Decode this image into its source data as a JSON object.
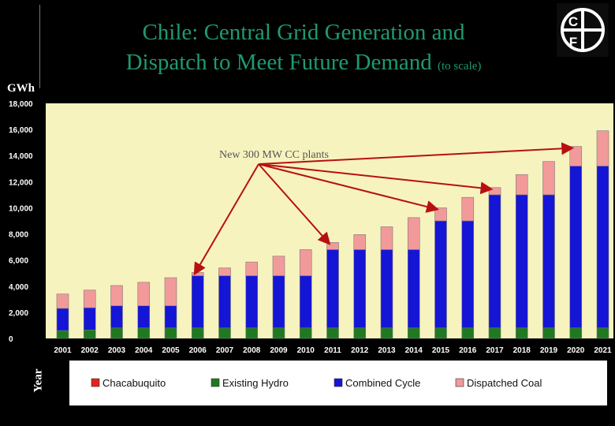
{
  "header": {
    "title_line1": "Chile: Central Grid Generation and",
    "title_line2": "Dispatch to Meet Future Demand",
    "title_note": "(to scale)",
    "logo_letters": [
      "C",
      "F"
    ]
  },
  "chart_data": {
    "type": "bar",
    "stacked": true,
    "title": "Chile: Central Grid Generation and Dispatch to Meet Future Demand (to scale)",
    "ylabel": "GWh",
    "xlabel": "Year",
    "ylim": [
      0,
      18000
    ],
    "yticks": [
      "18,000",
      "16,000",
      "14,000",
      "12,000",
      "10,000",
      "8,000",
      "6,000",
      "4,000",
      "2,000",
      "0"
    ],
    "ytick_values": [
      18000,
      16000,
      14000,
      12000,
      10000,
      8000,
      6000,
      4000,
      2000,
      0
    ],
    "categories": [
      "2001",
      "2002",
      "2003",
      "2004",
      "2005",
      "2006",
      "2007",
      "2008",
      "2009",
      "2010",
      "2011",
      "2012",
      "2013",
      "2014",
      "2015",
      "2016",
      "2017",
      "2018",
      "2019",
      "2020",
      "2021"
    ],
    "series": [
      {
        "name": "Chacabuquito",
        "color": "#e8221a",
        "values": [
          0,
          0,
          0,
          0,
          0,
          0,
          0,
          0,
          0,
          0,
          0,
          0,
          0,
          0,
          0,
          0,
          0,
          0,
          0,
          0,
          0
        ]
      },
      {
        "name": "Existing Hydro",
        "color": "#1f7a1f",
        "values": [
          600,
          650,
          800,
          800,
          800,
          800,
          800,
          800,
          800,
          800,
          800,
          800,
          800,
          800,
          800,
          800,
          800,
          800,
          800,
          800,
          800
        ]
      },
      {
        "name": "Combined Cycle",
        "color": "#1515d6",
        "values": [
          1700,
          1700,
          1700,
          1700,
          1700,
          4000,
          4000,
          4000,
          4000,
          4000,
          6000,
          6000,
          6000,
          6000,
          8200,
          8200,
          10200,
          10200,
          10200,
          12400,
          12400
        ]
      },
      {
        "name": "Dispatched Coal",
        "color": "#f29a9a",
        "values": [
          1100,
          1350,
          1550,
          1800,
          2150,
          250,
          600,
          1050,
          1500,
          2000,
          550,
          1150,
          1750,
          2450,
          1000,
          1800,
          550,
          1550,
          2550,
          1500,
          2700
        ]
      }
    ],
    "annotation": {
      "text": "New 300 MW CC plants",
      "arrow_color": "#b81010",
      "targets": [
        "2006",
        "2011",
        "2015",
        "2017",
        "2020"
      ]
    },
    "legend_position": "bottom",
    "grid": false,
    "plot_background": "#f7f3bf"
  }
}
